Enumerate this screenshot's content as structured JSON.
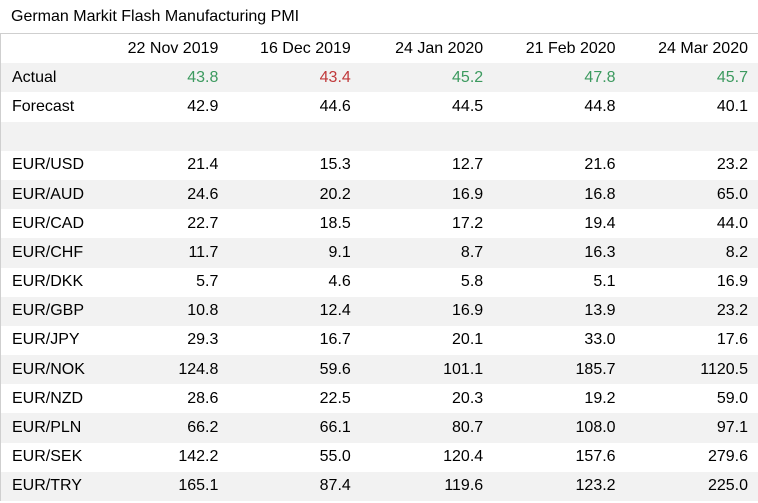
{
  "title": "German Markit Flash Manufacturing PMI",
  "colors": {
    "positive": "#3c9a5f",
    "negative": "#c0393b",
    "stripe": "#f2f2f2"
  },
  "table": {
    "headers": [
      "",
      "22 Nov 2019",
      "16 Dec 2019",
      "24 Jan 2020",
      "21 Feb 2020",
      "24 Mar 2020"
    ],
    "actual": {
      "label": "Actual",
      "values": [
        "43.8",
        "43.4",
        "45.2",
        "47.8",
        "45.7"
      ],
      "colors": [
        "green",
        "red",
        "green",
        "green",
        "green"
      ]
    },
    "forecast": {
      "label": "Forecast",
      "values": [
        "42.9",
        "44.6",
        "44.5",
        "44.8",
        "40.1"
      ]
    },
    "pairs": [
      {
        "label": "EUR/USD",
        "values": [
          "21.4",
          "15.3",
          "12.7",
          "21.6",
          "23.2"
        ]
      },
      {
        "label": "EUR/AUD",
        "values": [
          "24.6",
          "20.2",
          "16.9",
          "16.8",
          "65.0"
        ]
      },
      {
        "label": "EUR/CAD",
        "values": [
          "22.7",
          "18.5",
          "17.2",
          "19.4",
          "44.0"
        ]
      },
      {
        "label": "EUR/CHF",
        "values": [
          "11.7",
          "9.1",
          "8.7",
          "16.3",
          "8.2"
        ]
      },
      {
        "label": "EUR/DKK",
        "values": [
          "5.7",
          "4.6",
          "5.8",
          "5.1",
          "16.9"
        ]
      },
      {
        "label": "EUR/GBP",
        "values": [
          "10.8",
          "12.4",
          "16.9",
          "13.9",
          "23.2"
        ]
      },
      {
        "label": "EUR/JPY",
        "values": [
          "29.3",
          "16.7",
          "20.1",
          "33.0",
          "17.6"
        ]
      },
      {
        "label": "EUR/NOK",
        "values": [
          "124.8",
          "59.6",
          "101.1",
          "185.7",
          "1120.5"
        ]
      },
      {
        "label": "EUR/NZD",
        "values": [
          "28.6",
          "22.5",
          "20.3",
          "19.2",
          "59.0"
        ]
      },
      {
        "label": "EUR/PLN",
        "values": [
          "66.2",
          "66.1",
          "80.7",
          "108.0",
          "97.1"
        ]
      },
      {
        "label": "EUR/SEK",
        "values": [
          "142.2",
          "55.0",
          "120.4",
          "157.6",
          "279.6"
        ]
      },
      {
        "label": "EUR/TRY",
        "values": [
          "165.1",
          "87.4",
          "119.6",
          "123.2",
          "225.0"
        ]
      }
    ]
  }
}
